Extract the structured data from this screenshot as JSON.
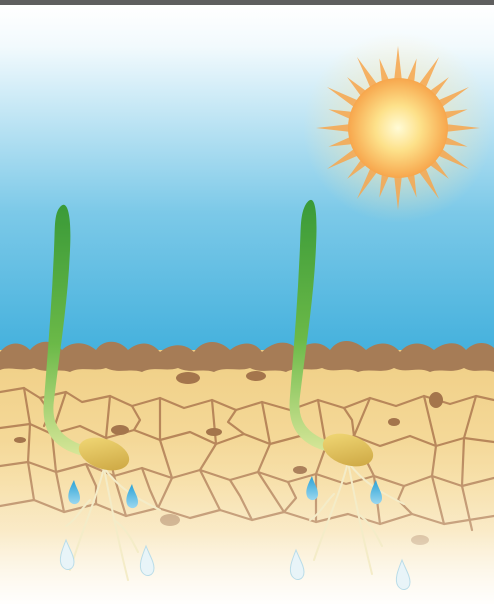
{
  "scene": {
    "subject": "seedlings-in-dry-cracked-soil",
    "colors": {
      "frame_bar": "#5f5f5f",
      "sky_top": "#ffffff",
      "sky_bottom": "#45b1dd",
      "sun_core": "#fff6b8",
      "sun_outer": "#f7a64c",
      "soil_light": "#f2d48c",
      "soil_crack": "#b8875a",
      "soil_crust": "#a47a55",
      "seedling_leaf": "#3f9c3a",
      "seed": "#e2c35a",
      "water_drop": "#2fa8dc"
    },
    "icons": [
      "sun-icon",
      "seedling-icon",
      "seed-icon",
      "water-drop-icon"
    ],
    "plants": [
      {
        "id": "left"
      },
      {
        "id": "right"
      }
    ]
  }
}
